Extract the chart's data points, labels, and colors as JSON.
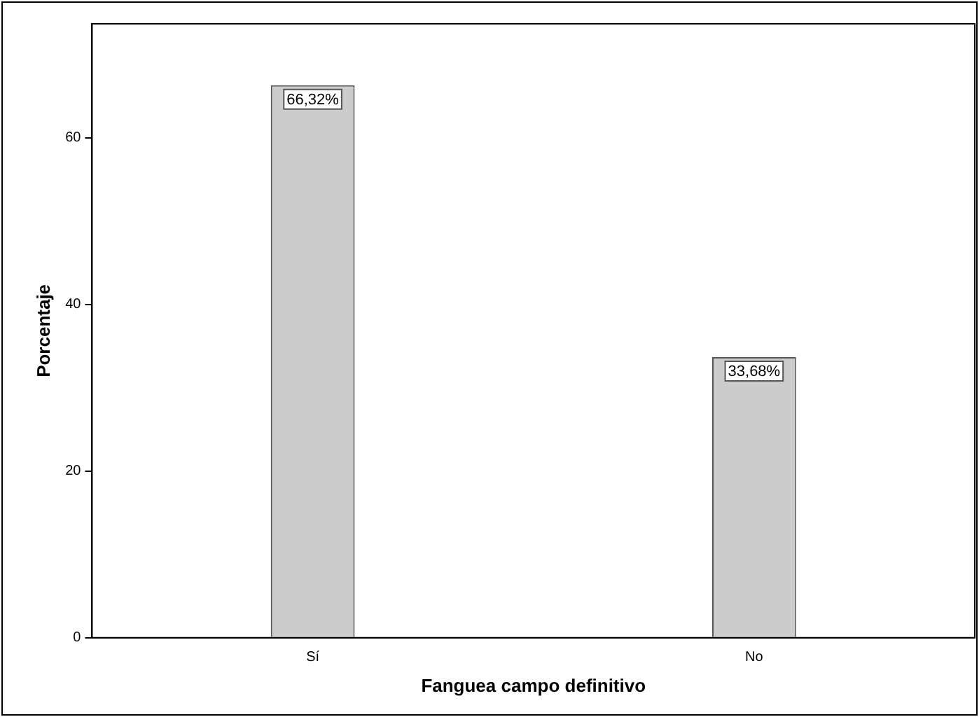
{
  "chart_data": {
    "type": "bar",
    "xlabel": "Fanguea campo definitivo",
    "ylabel": "Porcentaje",
    "categories": [
      "Sí",
      "No"
    ],
    "values": [
      66.32,
      33.68
    ],
    "color": "#cccccc",
    "value_labels": [
      "66,32%",
      "33,68%"
    ],
    "ylim": [
      0,
      73.7
    ],
    "yticks": [
      0,
      20,
      40,
      60
    ],
    "grid": false,
    "legend": false
  }
}
